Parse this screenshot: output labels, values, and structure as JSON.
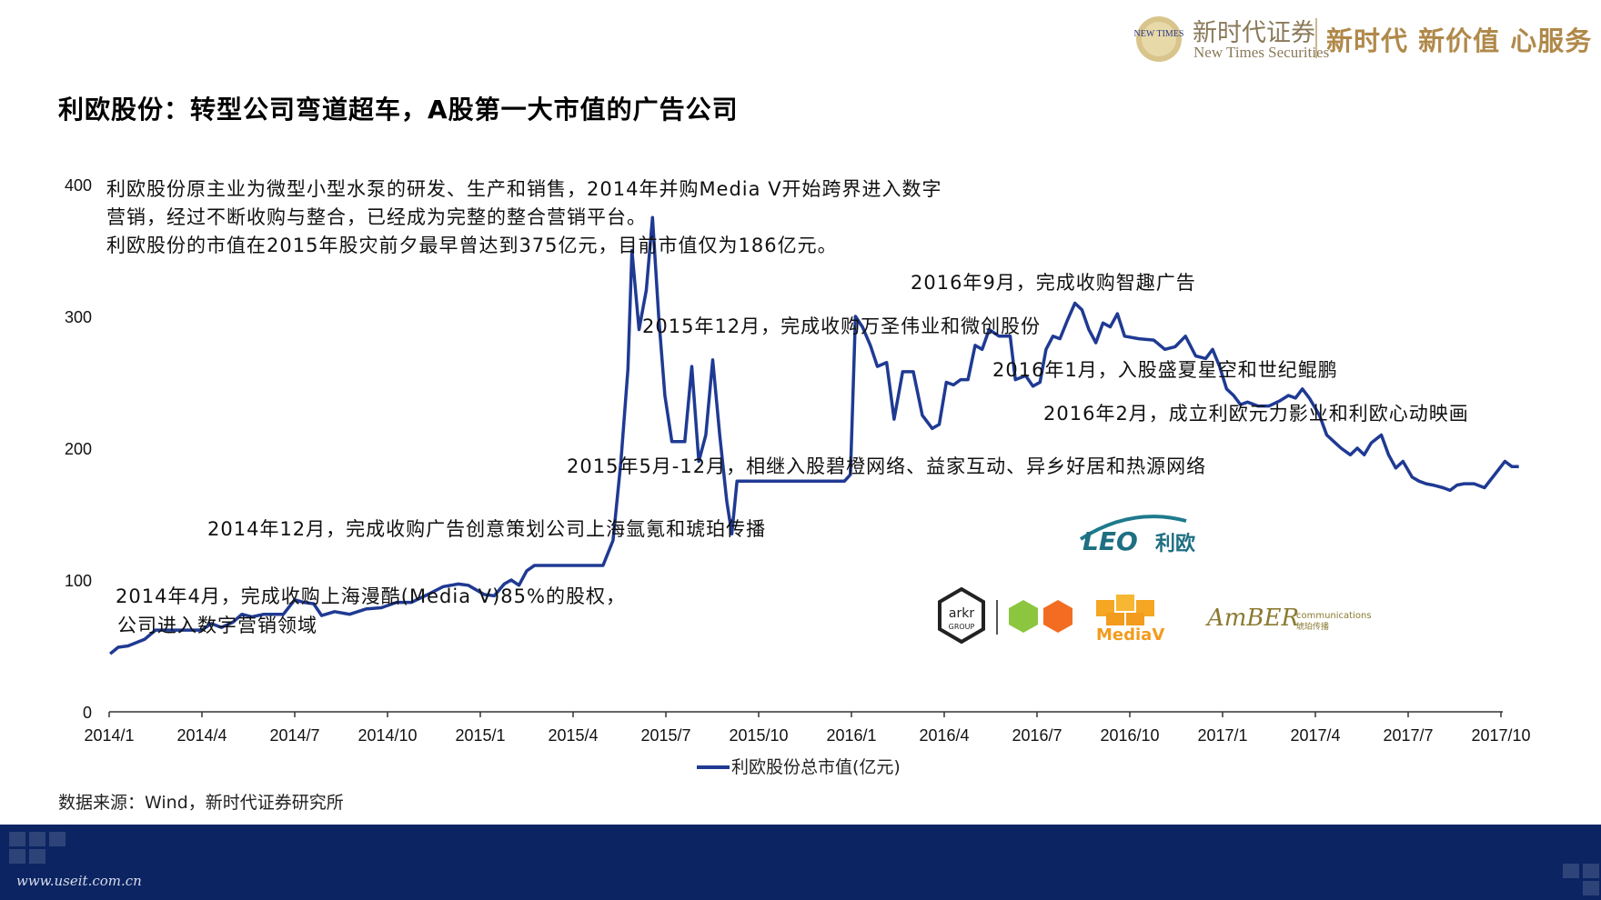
{
  "header": {
    "logo_text": "NEW TIMES",
    "brand_cn": "新时代证券",
    "brand_en": "New Times Securities",
    "slogan": "新时代 新价值 心服务",
    "brand_color": "#b0894a"
  },
  "title": "利欧股份：转型公司弯道超车，A股第一大市值的广告公司",
  "description": [
    "利欧股份原主业为微型小型水泵的研发、生产和销售，2014年并购Media V开始跨界进入数字",
    "营销，经过不断收购与整合，已经成为完整的整合营销平台。",
    "利欧股份的市值在2015年股灾前夕最早曾达到375亿元，目前市值仅为186亿元。"
  ],
  "annotations": [
    {
      "line1": "2014年4月，完成收购上海漫酷(Media V)85%的股权，",
      "line2": "公司进入数字营销领域"
    },
    {
      "line1": "2014年12月，完成收购广告创意策划公司上海氩氪和琥珀传播"
    },
    {
      "line1": "2015年5月-12月，相继入股碧橙网络、益家互动、异乡好居和热源网络"
    },
    {
      "line1": "2015年12月，完成收购万圣伟业和微创股份"
    },
    {
      "line1": "2016年9月，完成收购智趣广告"
    },
    {
      "line1": "2016年1月，入股盛夏星空和世纪鲲鹏"
    },
    {
      "line1": "2016年2月，成立利欧元力影业和利欧心动映画"
    }
  ],
  "logos": {
    "leo": "LEO",
    "leo_cn": "利欧",
    "arkr": "arkr",
    "arkr_group": "GROUP",
    "mediav": "MediaV",
    "amber": "AmBER",
    "amber_sub": "communications",
    "amber_cn": "琥珀传播"
  },
  "chart_data": {
    "type": "line",
    "title": "",
    "xlabel": "",
    "ylabel": "",
    "ylim": [
      0,
      400
    ],
    "yticks": [
      0,
      100,
      200,
      300,
      400
    ],
    "xticks": [
      "2014/1",
      "2014/4",
      "2014/7",
      "2014/10",
      "2015/1",
      "2015/4",
      "2015/7",
      "2015/10",
      "2016/1",
      "2016/4",
      "2016/7",
      "2016/10",
      "2017/1",
      "2017/4",
      "2017/7",
      "2017/10"
    ],
    "grid": false,
    "legend_position": "bottom",
    "series": [
      {
        "name": "利欧股份总市值(亿元)",
        "color": "#1f3a93",
        "points": [
          [
            "2014-01-02",
            44
          ],
          [
            "2014-01-10",
            49
          ],
          [
            "2014-01-20",
            50
          ],
          [
            "2014-02-05",
            55
          ],
          [
            "2014-02-15",
            62
          ],
          [
            "2014-03-01",
            62
          ],
          [
            "2014-03-20",
            62
          ],
          [
            "2014-04-01",
            62
          ],
          [
            "2014-04-10",
            67
          ],
          [
            "2014-04-20",
            64
          ],
          [
            "2014-05-01",
            68
          ],
          [
            "2014-05-10",
            74
          ],
          [
            "2014-05-20",
            72
          ],
          [
            "2014-06-01",
            74
          ],
          [
            "2014-06-20",
            74
          ],
          [
            "2014-07-01",
            85
          ],
          [
            "2014-07-10",
            83
          ],
          [
            "2014-07-20",
            82
          ],
          [
            "2014-07-28",
            73
          ],
          [
            "2014-08-10",
            76
          ],
          [
            "2014-08-25",
            74
          ],
          [
            "2014-09-10",
            78
          ],
          [
            "2014-09-25",
            79
          ],
          [
            "2014-10-10",
            83
          ],
          [
            "2014-10-25",
            83
          ],
          [
            "2014-11-10",
            89
          ],
          [
            "2014-11-25",
            95
          ],
          [
            "2014-12-10",
            97
          ],
          [
            "2014-12-20",
            96
          ],
          [
            "2015-01-05",
            89
          ],
          [
            "2015-01-15",
            88
          ],
          [
            "2015-01-25",
            97
          ],
          [
            "2015-02-01",
            100
          ],
          [
            "2015-02-08",
            96
          ],
          [
            "2015-02-15",
            107
          ],
          [
            "2015-02-22",
            111
          ],
          [
            "2015-03-05",
            111
          ],
          [
            "2015-03-20",
            111
          ],
          [
            "2015-04-05",
            111
          ],
          [
            "2015-04-20",
            111
          ],
          [
            "2015-04-30",
            111
          ],
          [
            "2015-05-10",
            130
          ],
          [
            "2015-05-18",
            190
          ],
          [
            "2015-05-25",
            260
          ],
          [
            "2015-05-29",
            350
          ],
          [
            "2015-06-05",
            290
          ],
          [
            "2015-06-12",
            320
          ],
          [
            "2015-06-18",
            375
          ],
          [
            "2015-06-24",
            300
          ],
          [
            "2015-06-30",
            240
          ],
          [
            "2015-07-07",
            205
          ],
          [
            "2015-07-20",
            205
          ],
          [
            "2015-07-27",
            262
          ],
          [
            "2015-08-03",
            190
          ],
          [
            "2015-08-10",
            210
          ],
          [
            "2015-08-17",
            267
          ],
          [
            "2015-08-24",
            210
          ],
          [
            "2015-08-31",
            160
          ],
          [
            "2015-09-05",
            135
          ],
          [
            "2015-09-10",
            175
          ],
          [
            "2015-09-20",
            175
          ],
          [
            "2015-10-10",
            175
          ],
          [
            "2015-10-30",
            175
          ],
          [
            "2015-11-20",
            175
          ],
          [
            "2015-12-10",
            175
          ],
          [
            "2015-12-25",
            175
          ],
          [
            "2015-12-31",
            180
          ],
          [
            "2016-01-05",
            300
          ],
          [
            "2016-01-12",
            292
          ],
          [
            "2016-01-20",
            278
          ],
          [
            "2016-01-27",
            262
          ],
          [
            "2016-02-05",
            265
          ],
          [
            "2016-02-12",
            222
          ],
          [
            "2016-02-20",
            258
          ],
          [
            "2016-03-01",
            258
          ],
          [
            "2016-03-10",
            225
          ],
          [
            "2016-03-20",
            215
          ],
          [
            "2016-03-27",
            218
          ],
          [
            "2016-04-03",
            250
          ],
          [
            "2016-04-10",
            248
          ],
          [
            "2016-04-17",
            252
          ],
          [
            "2016-04-24",
            252
          ],
          [
            "2016-05-01",
            278
          ],
          [
            "2016-05-08",
            275
          ],
          [
            "2016-05-15",
            290
          ],
          [
            "2016-05-25",
            285
          ],
          [
            "2016-06-05",
            285
          ],
          [
            "2016-06-10",
            252
          ],
          [
            "2016-06-20",
            255
          ],
          [
            "2016-06-27",
            247
          ],
          [
            "2016-07-04",
            250
          ],
          [
            "2016-07-10",
            275
          ],
          [
            "2016-07-17",
            285
          ],
          [
            "2016-07-24",
            283
          ],
          [
            "2016-08-01",
            298
          ],
          [
            "2016-08-08",
            310
          ],
          [
            "2016-08-15",
            305
          ],
          [
            "2016-08-22",
            290
          ],
          [
            "2016-08-29",
            280
          ],
          [
            "2016-09-05",
            295
          ],
          [
            "2016-09-12",
            292
          ],
          [
            "2016-09-19",
            302
          ],
          [
            "2016-09-26",
            285
          ],
          [
            "2016-10-10",
            283
          ],
          [
            "2016-10-25",
            282
          ],
          [
            "2016-11-05",
            275
          ],
          [
            "2016-11-15",
            277
          ],
          [
            "2016-11-25",
            285
          ],
          [
            "2016-12-05",
            270
          ],
          [
            "2016-12-15",
            268
          ],
          [
            "2016-12-22",
            275
          ],
          [
            "2016-12-29",
            262
          ],
          [
            "2017-01-05",
            245
          ],
          [
            "2017-01-12",
            240
          ],
          [
            "2017-01-19",
            233
          ],
          [
            "2017-01-26",
            235
          ],
          [
            "2017-02-05",
            232
          ],
          [
            "2017-02-15",
            232
          ],
          [
            "2017-02-25",
            236
          ],
          [
            "2017-03-05",
            240
          ],
          [
            "2017-03-12",
            238
          ],
          [
            "2017-03-19",
            245
          ],
          [
            "2017-03-26",
            238
          ],
          [
            "2017-04-05",
            225
          ],
          [
            "2017-04-12",
            210
          ],
          [
            "2017-04-19",
            205
          ],
          [
            "2017-04-26",
            200
          ],
          [
            "2017-05-05",
            195
          ],
          [
            "2017-05-12",
            200
          ],
          [
            "2017-05-19",
            195
          ],
          [
            "2017-05-26",
            204
          ],
          [
            "2017-06-05",
            210
          ],
          [
            "2017-06-12",
            195
          ],
          [
            "2017-06-19",
            185
          ],
          [
            "2017-06-26",
            190
          ],
          [
            "2017-07-05",
            178
          ],
          [
            "2017-07-12",
            175
          ],
          [
            "2017-07-19",
            173
          ],
          [
            "2017-07-26",
            172
          ],
          [
            "2017-08-05",
            170
          ],
          [
            "2017-08-12",
            168
          ],
          [
            "2017-08-19",
            172
          ],
          [
            "2017-08-26",
            173
          ],
          [
            "2017-09-05",
            173
          ],
          [
            "2017-09-15",
            170
          ],
          [
            "2017-09-25",
            180
          ],
          [
            "2017-10-05",
            190
          ],
          [
            "2017-10-12",
            186
          ],
          [
            "2017-10-19",
            186
          ]
        ]
      }
    ]
  },
  "source": "数据来源：Wind，新时代证券研究所",
  "footer": {
    "url": "www.useit.com.cn",
    "color": "#0c2462"
  }
}
